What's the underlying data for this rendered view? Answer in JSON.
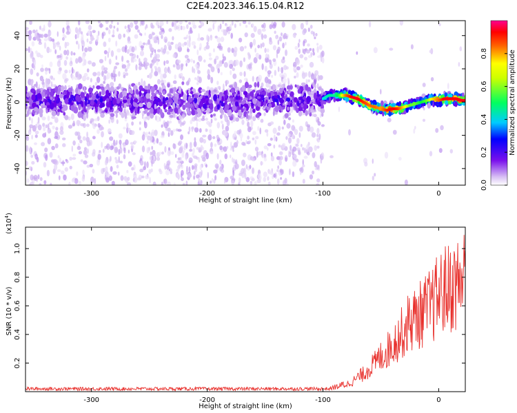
{
  "figure": {
    "title": "C2E4.2023.346.15.04.R12"
  },
  "chart_data": [
    {
      "type": "heatmap",
      "title": "C2E4.2023.346.15.04.R12",
      "xlabel": "Height of straight line (km)",
      "ylabel": "Frequency (Hz)",
      "xlim": [
        -357,
        23
      ],
      "ylim": [
        -50,
        49
      ],
      "x_ticks": [
        -300,
        -200,
        -100,
        0
      ],
      "x_tick_labels": [
        "-300",
        "-200",
        "-100",
        "0"
      ],
      "y_ticks": [
        -40,
        -20,
        0,
        20,
        40
      ],
      "y_tick_labels": [
        "-40",
        "-20",
        "0",
        "20",
        "40"
      ],
      "grid": false,
      "colorbar": {
        "label": "Normalized spectral amplitude",
        "range": [
          0,
          1
        ],
        "ticks": [
          0.0,
          0.2,
          0.4,
          0.6,
          0.8
        ],
        "tick_labels": [
          "0.0",
          "0.2",
          "0.4",
          "0.6",
          "0.8"
        ],
        "colormap": [
          "#ffffff",
          "#c8a8f0",
          "#6a00e8",
          "#0000ff",
          "#00e0ff",
          "#00ff40",
          "#ffff00",
          "#ff8000",
          "#ff0000",
          "#ff00a0"
        ]
      },
      "ridge": {
        "x": [
          -357,
          -300,
          -200,
          -100,
          -95,
          -90,
          -85,
          -80,
          -75,
          -70,
          -65,
          -60,
          -55,
          -50,
          -45,
          -40,
          -35,
          -30,
          -25,
          -20,
          -15,
          -10,
          -5,
          0,
          5,
          10,
          15,
          20,
          23
        ],
        "freq": [
          1,
          1,
          0,
          2,
          4,
          4,
          4,
          4,
          3,
          2,
          0,
          -2,
          -3,
          -4,
          -5,
          -4,
          -4,
          -3,
          -2,
          -1,
          0,
          1,
          2,
          1,
          2,
          2,
          2,
          1,
          1
        ],
        "peak_amplitude": [
          0.3,
          0.3,
          0.3,
          0.45,
          0.5,
          0.5,
          0.6,
          0.8,
          0.9,
          0.9,
          0.85,
          0.8,
          0.8,
          0.75,
          0.85,
          0.9,
          0.85,
          0.7,
          0.6,
          0.6,
          0.55,
          0.6,
          0.7,
          0.8,
          0.9,
          0.9,
          0.9,
          0.9,
          0.9
        ]
      }
    },
    {
      "type": "line",
      "xlabel": "Height of straight line (km)",
      "ylabel": "SNR (10 * v/v)",
      "y_scale_label": "(x10",
      "y_scale_exp": "4",
      "y_scale_close": ")",
      "xlim": [
        -357,
        23
      ],
      "ylim": [
        0,
        1.15
      ],
      "x_ticks": [
        -300,
        -200,
        -100,
        0
      ],
      "x_tick_labels": [
        "-300",
        "-200",
        "-100",
        "0"
      ],
      "y_ticks": [
        0.2,
        0.4,
        0.6,
        0.8,
        1.0
      ],
      "y_tick_labels": [
        "0.2",
        "0.4",
        "0.6",
        "0.8",
        "1.0"
      ],
      "grid": false,
      "series": [
        {
          "color": "#e8302c",
          "x": [
            -357,
            -300,
            -250,
            -200,
            -150,
            -110,
            -100,
            -95,
            -90,
            -85,
            -80,
            -75,
            -70,
            -65,
            -60,
            -55,
            -50,
            -45,
            -40,
            -35,
            -30,
            -25,
            -20,
            -15,
            -10,
            -5,
            0,
            5,
            10,
            15,
            20,
            23
          ],
          "y": [
            0.02,
            0.02,
            0.02,
            0.02,
            0.02,
            0.02,
            0.02,
            0.02,
            0.03,
            0.04,
            0.06,
            0.08,
            0.12,
            0.15,
            0.2,
            0.24,
            0.3,
            0.34,
            0.4,
            0.46,
            0.52,
            0.6,
            0.62,
            0.66,
            0.7,
            0.74,
            0.82,
            0.86,
            0.88,
            0.9,
            0.96,
            0.98
          ]
        }
      ]
    }
  ]
}
